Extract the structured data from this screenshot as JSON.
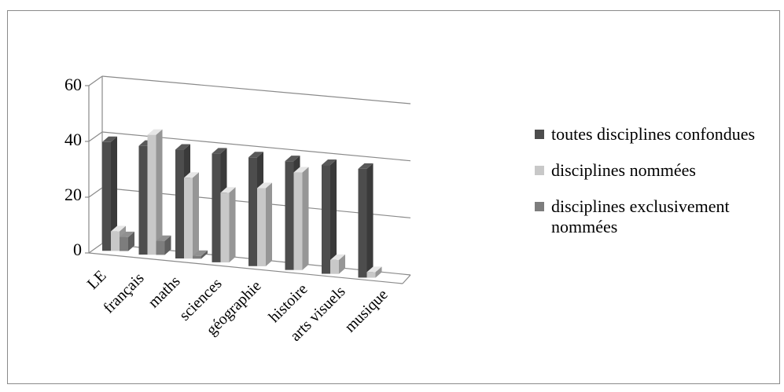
{
  "chart_data": {
    "type": "bar",
    "categories": [
      "LE",
      "français",
      "maths",
      "sciences",
      "géographie",
      "histoire",
      "arts visuels",
      "musique"
    ],
    "series": [
      {
        "name": "toutes disciplines confondues",
        "values": [
          39,
          39,
          39,
          39,
          39,
          39,
          39,
          39
        ]
      },
      {
        "name": "disciplines nommées",
        "values": [
          7,
          43,
          29,
          25,
          28,
          35,
          5,
          2
        ]
      },
      {
        "name": "disciplines exclusivement nommées",
        "values": [
          5,
          5,
          1,
          0,
          0,
          0,
          0,
          0
        ]
      }
    ],
    "yticks": [
      "0",
      "20",
      "40",
      "60"
    ],
    "ylim": [
      0,
      60
    ],
    "grid": true,
    "legend_position": "right"
  },
  "colors": {
    "toutes": "#4d4d4d",
    "nommees": "#c8c8c8",
    "exclusivement": "#7d7d7d"
  }
}
